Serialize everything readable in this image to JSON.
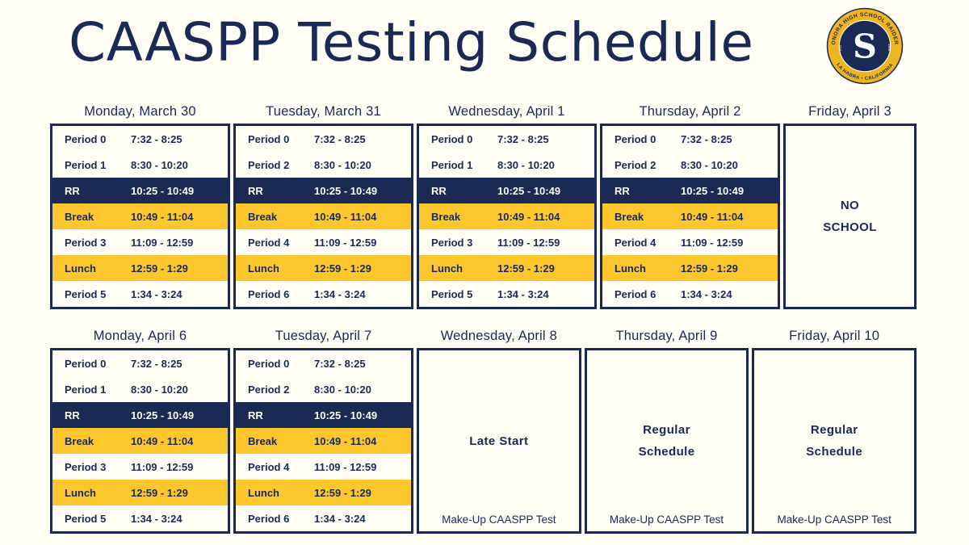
{
  "page": {
    "title": "CAASPP Testing Schedule"
  },
  "colors": {
    "navy": "#1b2a55",
    "gold": "#fcc72d",
    "cream": "#fffdf4",
    "logo-gold": "#efb51e"
  },
  "logo": {
    "text_top": "SONORA HIGH SCHOOL RAIDERS",
    "text_bottom": "LA HABRA • CALIFORNIA",
    "letter": "S",
    "est_left": "EST.",
    "est_right": "1966"
  },
  "weeks": [
    {
      "days": [
        {
          "header": "Monday, March 30",
          "type": "schedule",
          "rows": [
            {
              "label": "Period 0",
              "time": "7:32 - 8:25",
              "style": "plain"
            },
            {
              "label": "Period 1",
              "time": "8:30 - 10:20",
              "style": "plain"
            },
            {
              "label": "RR",
              "time": "10:25 - 10:49",
              "style": "navy"
            },
            {
              "label": "Break",
              "time": "10:49 - 11:04",
              "style": "gold"
            },
            {
              "label": "Period 3",
              "time": "11:09 - 12:59",
              "style": "plain"
            },
            {
              "label": "Lunch",
              "time": "12:59 - 1:29",
              "style": "gold"
            },
            {
              "label": "Period 5",
              "time": "1:34 - 3:24",
              "style": "plain"
            }
          ]
        },
        {
          "header": "Tuesday, March 31",
          "type": "schedule",
          "rows": [
            {
              "label": "Period 0",
              "time": "7:32 - 8:25",
              "style": "plain"
            },
            {
              "label": "Period 2",
              "time": "8:30 - 10:20",
              "style": "plain"
            },
            {
              "label": "RR",
              "time": "10:25 - 10:49",
              "style": "navy"
            },
            {
              "label": "Break",
              "time": "10:49 - 11:04",
              "style": "gold"
            },
            {
              "label": "Period 4",
              "time": "11:09 - 12:59",
              "style": "plain"
            },
            {
              "label": "Lunch",
              "time": "12:59 - 1:29",
              "style": "gold"
            },
            {
              "label": "Period 6",
              "time": "1:34 - 3:24",
              "style": "plain"
            }
          ]
        },
        {
          "header": "Wednesday, April 1",
          "type": "schedule",
          "rows": [
            {
              "label": "Period 0",
              "time": "7:32 - 8:25",
              "style": "plain"
            },
            {
              "label": "Period 1",
              "time": "8:30 - 10:20",
              "style": "plain"
            },
            {
              "label": "RR",
              "time": "10:25 - 10:49",
              "style": "navy"
            },
            {
              "label": "Break",
              "time": "10:49 - 11:04",
              "style": "gold"
            },
            {
              "label": "Period 3",
              "time": "11:09 - 12:59",
              "style": "plain"
            },
            {
              "label": "Lunch",
              "time": "12:59 - 1:29",
              "style": "gold"
            },
            {
              "label": "Period 5",
              "time": "1:34 - 3:24",
              "style": "plain"
            }
          ]
        },
        {
          "header": "Thursday, April 2",
          "type": "schedule",
          "rows": [
            {
              "label": "Period 0",
              "time": "7:32 - 8:25",
              "style": "plain"
            },
            {
              "label": "Period 2",
              "time": "8:30 - 10:20",
              "style": "plain"
            },
            {
              "label": "RR",
              "time": "10:25 - 10:49",
              "style": "navy"
            },
            {
              "label": "Break",
              "time": "10:49 - 11:04",
              "style": "gold"
            },
            {
              "label": "Period 4",
              "time": "11:09 - 12:59",
              "style": "plain"
            },
            {
              "label": "Lunch",
              "time": "12:59 - 1:29",
              "style": "gold"
            },
            {
              "label": "Period 6",
              "time": "1:34 - 3:24",
              "style": "plain"
            }
          ]
        },
        {
          "header": "Friday, April 3",
          "type": "note",
          "label_lines": [
            "NO",
            "SCHOOL"
          ],
          "footer": ""
        }
      ]
    },
    {
      "days": [
        {
          "header": "Monday, April 6",
          "type": "schedule",
          "rows": [
            {
              "label": "Period 0",
              "time": "7:32 - 8:25",
              "style": "plain"
            },
            {
              "label": "Period 1",
              "time": "8:30 - 10:20",
              "style": "plain"
            },
            {
              "label": "RR",
              "time": "10:25 - 10:49",
              "style": "navy"
            },
            {
              "label": "Break",
              "time": "10:49 - 11:04",
              "style": "gold"
            },
            {
              "label": "Period 3",
              "time": "11:09 - 12:59",
              "style": "plain"
            },
            {
              "label": "Lunch",
              "time": "12:59 - 1:29",
              "style": "gold"
            },
            {
              "label": "Period 5",
              "time": "1:34 - 3:24",
              "style": "plain"
            }
          ]
        },
        {
          "header": "Tuesday, April 7",
          "type": "schedule",
          "rows": [
            {
              "label": "Period 0",
              "time": "7:32 - 8:25",
              "style": "plain"
            },
            {
              "label": "Period 2",
              "time": "8:30 - 10:20",
              "style": "plain"
            },
            {
              "label": "RR",
              "time": "10:25 - 10:49",
              "style": "navy"
            },
            {
              "label": "Break",
              "time": "10:49 - 11:04",
              "style": "gold"
            },
            {
              "label": "Period 4",
              "time": "11:09 - 12:59",
              "style": "plain"
            },
            {
              "label": "Lunch",
              "time": "12:59 - 1:29",
              "style": "gold"
            },
            {
              "label": "Period 6",
              "time": "1:34 - 3:24",
              "style": "plain"
            }
          ]
        },
        {
          "header": "Wednesday, April 8",
          "type": "note",
          "label_lines": [
            "Late Start"
          ],
          "footer": "Make-Up CAASPP Test"
        },
        {
          "header": "Thursday, April 9",
          "type": "note",
          "label_lines": [
            "Regular",
            "Schedule"
          ],
          "footer": "Make-Up CAASPP Test"
        },
        {
          "header": "Friday, April 10",
          "type": "note",
          "label_lines": [
            "Regular",
            "Schedule"
          ],
          "footer": "Make-Up CAASPP Test"
        }
      ]
    }
  ]
}
